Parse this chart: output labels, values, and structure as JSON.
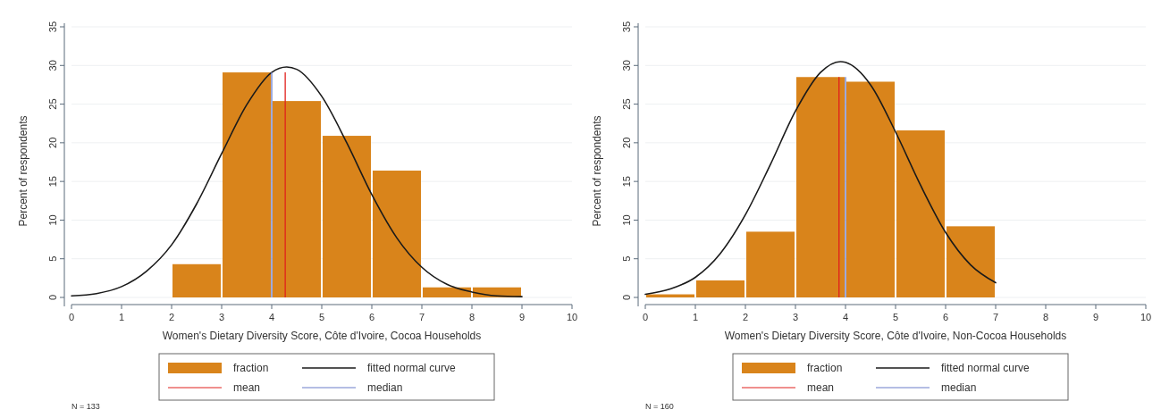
{
  "chart_data": [
    {
      "type": "histogram",
      "xlabel": "Women's Dietary Diversity Score, Côte d'Ivoire, Cocoa Households",
      "ylabel": "Percent of respondents",
      "xlim": [
        0,
        10
      ],
      "xticks": [
        0,
        1,
        2,
        3,
        4,
        5,
        6,
        7,
        8,
        9,
        10
      ],
      "ylim": [
        0,
        35
      ],
      "yticks": [
        0,
        5,
        10,
        15,
        20,
        25,
        30,
        35
      ],
      "grid": "y",
      "legend": "bottom",
      "series": [
        {
          "name": "fraction",
          "color": "#d9841b",
          "bins": [
            2,
            3,
            4,
            5,
            6,
            7,
            8,
            9
          ],
          "values": [
            4.3,
            29.1,
            25.4,
            20.9,
            16.4,
            1.3,
            1.3
          ]
        },
        {
          "name": "fitted normal curve",
          "type": "line",
          "color": "#1a1a1a",
          "x": [
            0,
            0.5,
            1,
            1.5,
            2,
            2.5,
            3,
            3.5,
            4,
            4.3,
            4.5,
            5,
            5.5,
            6,
            6.5,
            7,
            7.5,
            8,
            8.5,
            9
          ],
          "values": [
            0.2,
            0.5,
            1.4,
            3.4,
            6.8,
            12.1,
            18.6,
            24.9,
            29.1,
            29.8,
            29.5,
            26.0,
            20.0,
            13.3,
            7.7,
            3.9,
            1.7,
            0.7,
            0.2,
            0.1
          ]
        }
      ],
      "ref_lines": [
        {
          "axis": "x",
          "value": 4.27,
          "label": "mean",
          "color": "#e0201c"
        },
        {
          "axis": "x",
          "value": 4,
          "label": "median",
          "color": "#6a7cc8"
        }
      ],
      "annotations": [
        "N = 133"
      ]
    },
    {
      "type": "histogram",
      "xlabel": "Women's Dietary Diversity Score, Côte d'Ivoire, Non-Cocoa Households",
      "ylabel": "Percent of respondents",
      "xlim": [
        0,
        10
      ],
      "xticks": [
        0,
        1,
        2,
        3,
        4,
        5,
        6,
        7,
        8,
        9,
        10
      ],
      "ylim": [
        0,
        35
      ],
      "yticks": [
        0,
        5,
        10,
        15,
        20,
        25,
        30,
        35
      ],
      "grid": "y",
      "legend": "bottom",
      "series": [
        {
          "name": "fraction",
          "color": "#d9841b",
          "bins": [
            0,
            1,
            2,
            3,
            4,
            5,
            6,
            7
          ],
          "values": [
            0.4,
            2.2,
            8.5,
            28.5,
            27.9,
            21.6,
            9.2
          ]
        },
        {
          "name": "fitted normal curve",
          "type": "line",
          "color": "#1a1a1a",
          "x": [
            0,
            0.5,
            1,
            1.5,
            2,
            2.5,
            3,
            3.5,
            3.9,
            4,
            4.5,
            5,
            5.5,
            6,
            6.5,
            7
          ],
          "values": [
            0.4,
            1.1,
            2.6,
            5.7,
            10.7,
            17.2,
            24.1,
            29.1,
            30.5,
            30.4,
            27.5,
            21.4,
            14.5,
            8.4,
            4.2,
            1.9
          ]
        }
      ],
      "ref_lines": [
        {
          "axis": "x",
          "value": 3.87,
          "label": "mean",
          "color": "#e0201c"
        },
        {
          "axis": "x",
          "value": 4,
          "label": "median",
          "color": "#6a7cc8"
        }
      ],
      "annotations": [
        "N = 160"
      ]
    }
  ]
}
